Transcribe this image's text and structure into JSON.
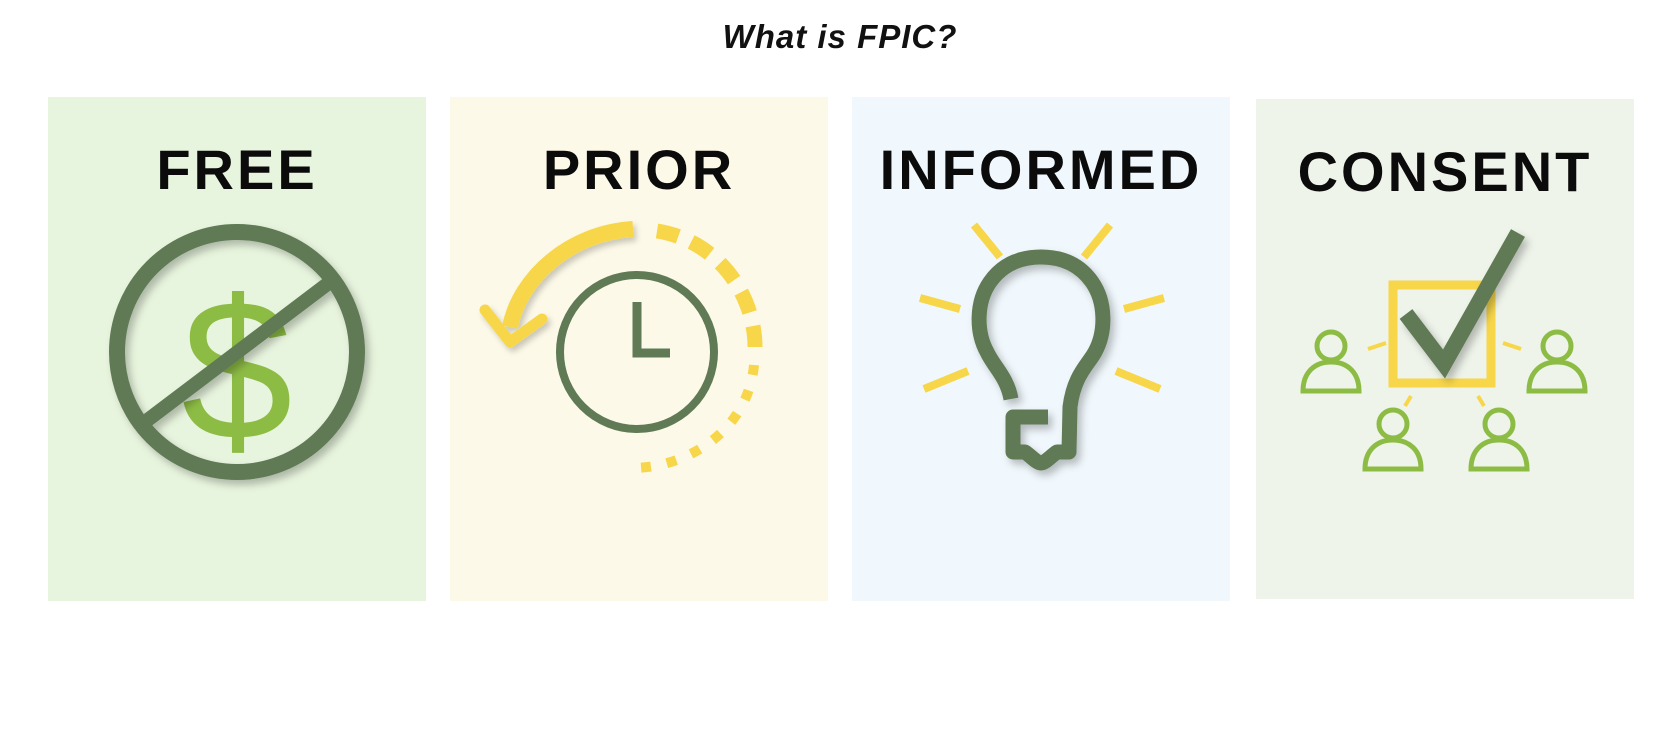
{
  "title": "What is FPIC?",
  "cards": [
    {
      "label": "FREE",
      "icon": "no-money-icon",
      "bg": "#e8f5de"
    },
    {
      "label": "PRIOR",
      "icon": "clock-rewind-icon",
      "bg": "#fdf9e8"
    },
    {
      "label": "INFORMED",
      "icon": "lightbulb-icon",
      "bg": "#f0f8fd"
    },
    {
      "label": "CONSENT",
      "icon": "checkbox-people-icon",
      "bg": "#eef4ea"
    }
  ],
  "colors": {
    "dark_green": "#5f7a54",
    "light_green": "#8dbc45",
    "yellow": "#f7d64a"
  }
}
